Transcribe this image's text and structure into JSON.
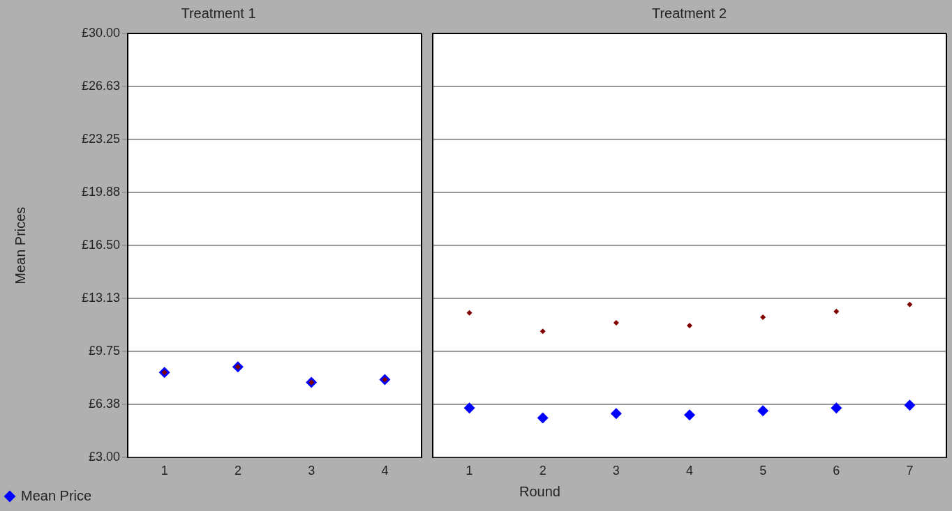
{
  "chart_data": [
    {
      "type": "scatter",
      "title": "Treatment 1",
      "ylabel": "Mean Prices",
      "categories": [
        "1",
        "2",
        "3",
        "4"
      ],
      "series": [
        {
          "name": "Mean Price",
          "color": "#0000ff",
          "values": [
            8.42,
            8.78,
            7.79,
            7.97
          ]
        },
        {
          "color": "#800000",
          "values": [
            8.42,
            8.78,
            7.79,
            7.97
          ]
        }
      ],
      "ylim": [
        3,
        30
      ],
      "yticks": [
        {
          "value": 3,
          "label": "£3.00"
        },
        {
          "value": 6.375,
          "label": "£6.38"
        },
        {
          "value": 9.75,
          "label": "£9.75"
        },
        {
          "value": 13.125,
          "label": "£13.13"
        },
        {
          "value": 16.5,
          "label": "£16.50"
        },
        {
          "value": 19.875,
          "label": "£19.88"
        },
        {
          "value": 23.25,
          "label": "£23.25"
        },
        {
          "value": 26.625,
          "label": "£26.63"
        },
        {
          "value": 30,
          "label": "£30.00"
        }
      ],
      "grid": "y",
      "marker": "diamond",
      "legend": "bottom left"
    },
    {
      "type": "scatter",
      "title": "Treatment 2",
      "xlabel": "Round",
      "categories": [
        "1",
        "2",
        "3",
        "4",
        "5",
        "6",
        "7"
      ],
      "series": [
        {
          "color": "#0000ff",
          "values": [
            6.16,
            5.53,
            5.8,
            5.71,
            5.98,
            6.16,
            6.34
          ]
        },
        {
          "color": "#800000",
          "values": [
            12.21,
            11.04,
            11.58,
            11.4,
            11.94,
            12.3,
            12.75
          ]
        }
      ],
      "ylim": [
        3,
        30
      ],
      "yticks": [
        {
          "value": 3,
          "label": null
        },
        {
          "value": 6.375,
          "label": null
        },
        {
          "value": 9.75,
          "label": null
        },
        {
          "value": 13.125,
          "label": null
        },
        {
          "value": 16.5,
          "label": null
        },
        {
          "value": 19.875,
          "label": null
        },
        {
          "value": 23.25,
          "label": null
        },
        {
          "value": 26.625,
          "label": null
        },
        {
          "value": 30,
          "label": null
        }
      ],
      "grid": "y",
      "marker": "diamond",
      "tick_labels": "x"
    }
  ]
}
